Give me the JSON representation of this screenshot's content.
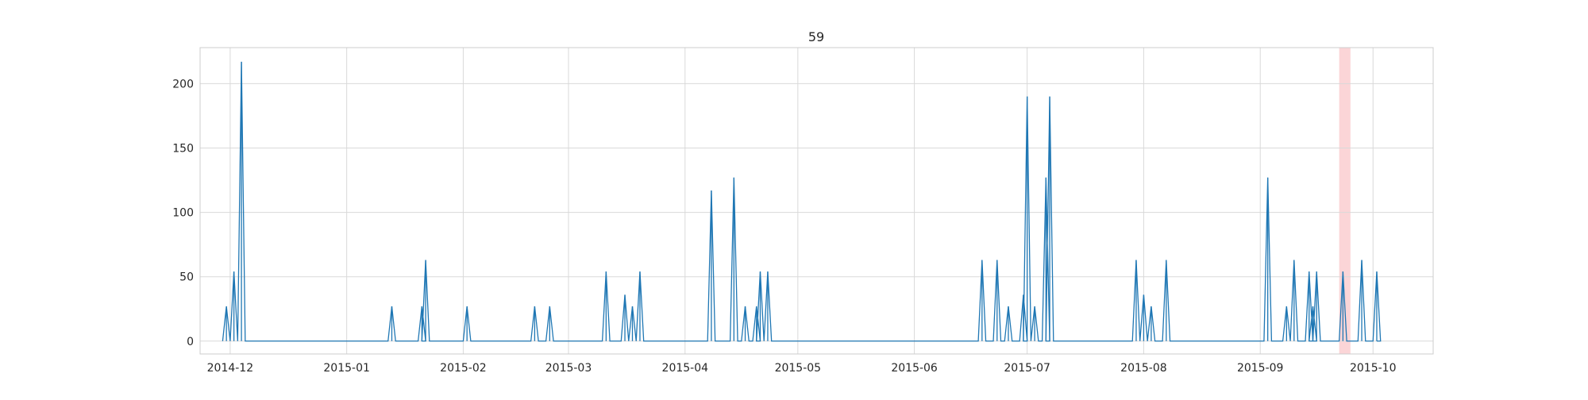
{
  "chart_data": {
    "type": "line",
    "title": "59",
    "xlabel": "",
    "ylabel": "",
    "x_axis": {
      "type": "date",
      "range": [
        "2014-11-23",
        "2015-10-17"
      ],
      "ticks": [
        "2014-12-01",
        "2015-01-01",
        "2015-02-01",
        "2015-03-01",
        "2015-04-01",
        "2015-05-01",
        "2015-06-01",
        "2015-07-01",
        "2015-08-01",
        "2015-09-01",
        "2015-10-01"
      ],
      "tick_labels": [
        "2014-12",
        "2015-01",
        "2015-02",
        "2015-03",
        "2015-04",
        "2015-05",
        "2015-06",
        "2015-07",
        "2015-08",
        "2015-09",
        "2015-10"
      ]
    },
    "y_axis": {
      "range": [
        -10,
        228
      ],
      "ticks": [
        0,
        50,
        100,
        150,
        200
      ],
      "tick_labels": [
        "0",
        "50",
        "100",
        "150",
        "200"
      ]
    },
    "grid": true,
    "line_color": "#1f77b4",
    "highlight_color": "#fbd5d7",
    "series_start": "2014-11-29",
    "series_end": "2015-10-02",
    "spikes": [
      {
        "date": "2014-11-30",
        "value": 27
      },
      {
        "date": "2014-12-02",
        "value": 54
      },
      {
        "date": "2014-12-04",
        "value": 217
      },
      {
        "date": "2015-01-13",
        "value": 27
      },
      {
        "date": "2015-01-21",
        "value": 27
      },
      {
        "date": "2015-01-22",
        "value": 63
      },
      {
        "date": "2015-02-02",
        "value": 27
      },
      {
        "date": "2015-02-20",
        "value": 27
      },
      {
        "date": "2015-02-24",
        "value": 27
      },
      {
        "date": "2015-03-11",
        "value": 54
      },
      {
        "date": "2015-03-16",
        "value": 36
      },
      {
        "date": "2015-03-18",
        "value": 27
      },
      {
        "date": "2015-03-20",
        "value": 54
      },
      {
        "date": "2015-04-08",
        "value": 117
      },
      {
        "date": "2015-04-14",
        "value": 127
      },
      {
        "date": "2015-04-17",
        "value": 27
      },
      {
        "date": "2015-04-20",
        "value": 27
      },
      {
        "date": "2015-04-21",
        "value": 54
      },
      {
        "date": "2015-04-23",
        "value": 54
      },
      {
        "date": "2015-06-19",
        "value": 63
      },
      {
        "date": "2015-06-23",
        "value": 63
      },
      {
        "date": "2015-06-26",
        "value": 27
      },
      {
        "date": "2015-06-30",
        "value": 36
      },
      {
        "date": "2015-07-01",
        "value": 190
      },
      {
        "date": "2015-07-03",
        "value": 27
      },
      {
        "date": "2015-07-06",
        "value": 127
      },
      {
        "date": "2015-07-07",
        "value": 190
      },
      {
        "date": "2015-07-30",
        "value": 63
      },
      {
        "date": "2015-08-01",
        "value": 36
      },
      {
        "date": "2015-08-03",
        "value": 27
      },
      {
        "date": "2015-08-07",
        "value": 63
      },
      {
        "date": "2015-09-03",
        "value": 127
      },
      {
        "date": "2015-09-08",
        "value": 27
      },
      {
        "date": "2015-09-10",
        "value": 63
      },
      {
        "date": "2015-09-14",
        "value": 54
      },
      {
        "date": "2015-09-15",
        "value": 27
      },
      {
        "date": "2015-09-16",
        "value": 54
      },
      {
        "date": "2015-09-23",
        "value": 54
      },
      {
        "date": "2015-09-28",
        "value": 63
      },
      {
        "date": "2015-10-02",
        "value": 54
      }
    ],
    "highlight_span": [
      "2015-09-22",
      "2015-09-25"
    ]
  }
}
